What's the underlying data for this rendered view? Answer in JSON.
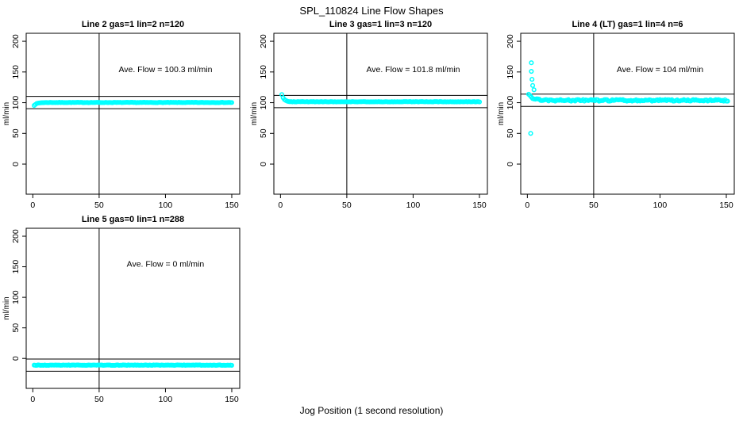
{
  "figure": {
    "title": "SPL_110824  Line Flow Shapes",
    "xlabel": "Jog Position (1 second resolution)",
    "background_color": "#ffffff",
    "point_color": "#00ffff",
    "axis_color": "#000000"
  },
  "chart_data": [
    {
      "type": "scatter",
      "title": "Line 2 gas=1 lin=2 n=120",
      "annotation": "Ave. Flow =  100.3  ml/min",
      "annotation_xy": [
        100,
        150
      ],
      "ave_flow": 100.3,
      "ylabel": "ml/min",
      "x_ticks": [
        0,
        50,
        100,
        150
      ],
      "y_ticks": [
        0,
        50,
        100,
        150,
        200
      ],
      "x_domain": [
        -5,
        156
      ],
      "y_domain": [
        -49,
        213
      ],
      "ref_lines_h": [
        110.3,
        90.3
      ],
      "ref_line_v": 50,
      "series": {
        "x_start": 1,
        "x_end": 150,
        "step": 1,
        "base": 100.3,
        "start_offset": -4.5,
        "decay": 2.2,
        "noise": 0.3
      },
      "outliers": []
    },
    {
      "type": "scatter",
      "title": "Line 3 gas=1 lin=3 n=120",
      "annotation": "Ave. Flow =  101.8  ml/min",
      "annotation_xy": [
        100,
        150
      ],
      "ave_flow": 101.8,
      "ylabel": "ml/min",
      "x_ticks": [
        0,
        50,
        100,
        150
      ],
      "y_ticks": [
        0,
        50,
        100,
        150,
        200
      ],
      "x_domain": [
        -5,
        156
      ],
      "y_domain": [
        -49,
        213
      ],
      "ref_lines_h": [
        111.8,
        91.8
      ],
      "ref_line_v": 50,
      "series": {
        "x_start": 1,
        "x_end": 150,
        "step": 1,
        "base": 101.5,
        "start_offset": 11.5,
        "decay": 1.8,
        "noise": 0.3
      },
      "outliers": []
    },
    {
      "type": "scatter",
      "title": "Line 4 (LT) gas=1 lin=4 n=6",
      "annotation": "Ave. Flow =  104  ml/min",
      "annotation_xy": [
        100,
        150
      ],
      "ave_flow": 104,
      "ylabel": "ml/min",
      "x_ticks": [
        0,
        50,
        100,
        150
      ],
      "y_ticks": [
        0,
        50,
        100,
        150,
        200
      ],
      "x_domain": [
        -5,
        156
      ],
      "y_domain": [
        -49,
        213
      ],
      "ref_lines_h": [
        114,
        94
      ],
      "ref_line_v": 50,
      "series": {
        "x_start": 1,
        "x_end": 151,
        "step": 1,
        "base": 103.8,
        "start_offset": 11,
        "decay": 3.0,
        "noise": 1.3
      },
      "outliers": [
        [
          3,
          165
        ],
        [
          3,
          151
        ],
        [
          3.5,
          138
        ],
        [
          4,
          128
        ],
        [
          5,
          121
        ],
        [
          2.5,
          50
        ]
      ]
    },
    {
      "type": "scatter",
      "title": "Line 5 gas=0 lin=1 n=288",
      "annotation": "Ave. Flow =  0  ml/min",
      "annotation_xy": [
        100,
        150
      ],
      "ave_flow": 0,
      "ylabel": "ml/min",
      "x_ticks": [
        0,
        50,
        100,
        150
      ],
      "y_ticks": [
        0,
        50,
        100,
        150,
        200
      ],
      "x_domain": [
        -5,
        156
      ],
      "y_domain": [
        -49,
        213
      ],
      "ref_lines_h": [
        -1,
        -21
      ],
      "ref_line_v": 50,
      "series": {
        "x_start": 1,
        "x_end": 150,
        "step": 1,
        "base": -11,
        "start_offset": 0,
        "decay": 1,
        "noise": 0.35
      },
      "outliers": []
    }
  ]
}
